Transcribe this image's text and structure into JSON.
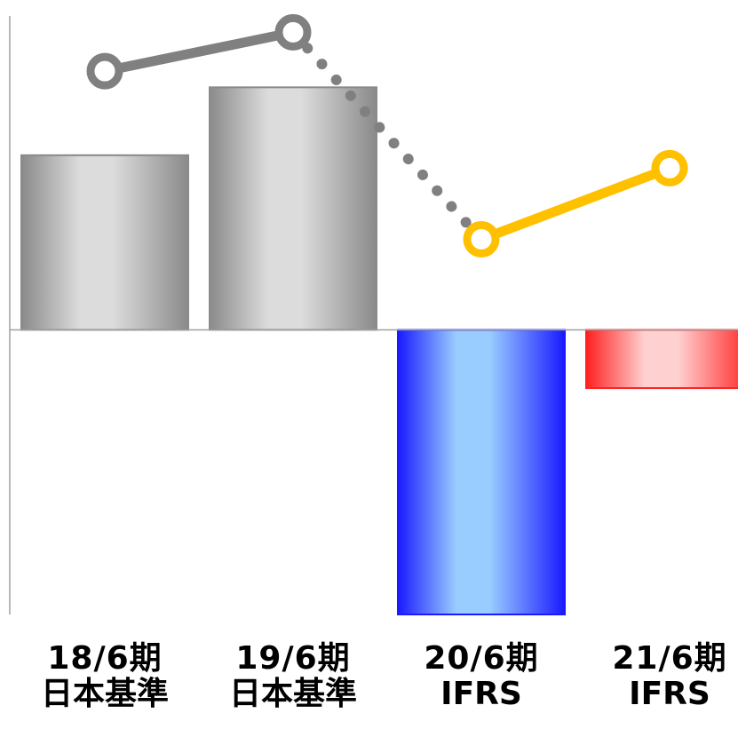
{
  "chart_data": [
    {
      "type": "bar",
      "categories": [
        "18/6期|日本基準",
        "19/6期|日本基準",
        "20/6期|IFRS",
        "21/6期|IFRS"
      ],
      "category_lines": [
        [
          "18/6期",
          "日本基準"
        ],
        [
          "19/6期",
          "日本基準"
        ],
        [
          "20/6期",
          "IFRS"
        ],
        [
          "21/6期",
          "IFRS"
        ]
      ],
      "values": [
        2.7,
        3.75,
        -4.4,
        -0.9
      ],
      "ylim": [
        -4.4,
        5.1
      ],
      "bar_colors": [
        "#8a8a8a",
        "#8a8a8a",
        "#1a1aff",
        "#ff2020"
      ],
      "bar_highlight_colors": [
        "#dcdcdc",
        "#dcdcdc",
        "#99ccff",
        "#ffd0d0"
      ],
      "title": "",
      "xlabel": "",
      "ylabel": ""
    },
    {
      "type": "line",
      "x": [
        "18/6期",
        "19/6期",
        "20/6期",
        "21/6期"
      ],
      "values": [
        4.0,
        4.6,
        1.4,
        2.5
      ],
      "ylim": [
        -4.4,
        5.1
      ],
      "segments": [
        {
          "from": 0,
          "to": 1,
          "style": "solid",
          "color": "#808080"
        },
        {
          "from": 1,
          "to": 2,
          "style": "dotted",
          "color": "#808080"
        },
        {
          "from": 2,
          "to": 3,
          "style": "solid",
          "color": "#ffc000"
        }
      ],
      "marker_colors": [
        "#808080",
        "#808080",
        "#ffc000",
        "#ffc000"
      ]
    }
  ],
  "axis_color": "#a0a0a0"
}
